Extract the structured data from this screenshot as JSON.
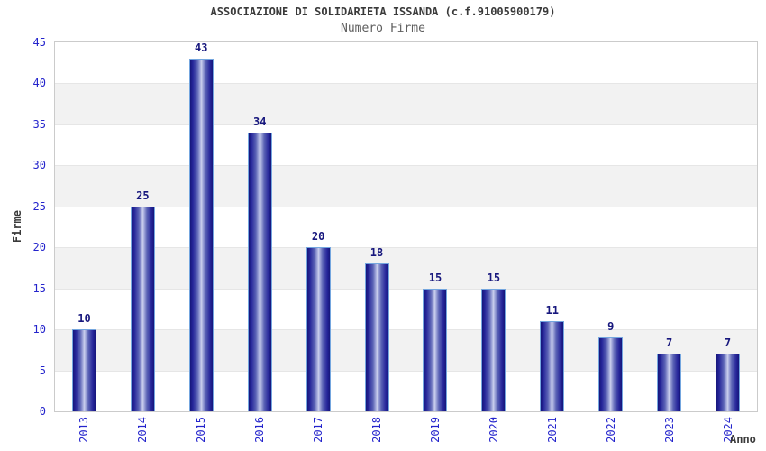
{
  "chart_data": {
    "type": "bar",
    "title": "ASSOCIAZIONE DI SOLIDARIETA ISSANDA (c.f.91005900179)",
    "subtitle": "Numero Firme",
    "xlabel": "Anno",
    "ylabel": "Firme",
    "categories": [
      "2013",
      "2014",
      "2015",
      "2016",
      "2017",
      "2018",
      "2019",
      "2020",
      "2021",
      "2022",
      "2023",
      "2024"
    ],
    "values": [
      10,
      25,
      43,
      34,
      20,
      18,
      15,
      15,
      11,
      9,
      7,
      7
    ],
    "ylim": [
      0,
      45
    ],
    "ytick_step": 5,
    "yticks": [
      0,
      5,
      10,
      15,
      20,
      25,
      30,
      35,
      40,
      45
    ],
    "grid": "horizontal alternating bands, gridline every 5",
    "legend": "none",
    "bar_labels_shown": true,
    "colors": {
      "bar_dark": "#1b1b86",
      "bar_highlight": "#ced2ee",
      "bar_border": "#74a6df",
      "axis_tick_label": "#2424cc",
      "value_label": "#17177d",
      "title_text": "#3a3a3a",
      "subtitle_text": "#5e5e5e",
      "band_gray": "#f2f2f2",
      "band_white": "#ffffff",
      "plot_border": "#cbcbcb"
    }
  }
}
